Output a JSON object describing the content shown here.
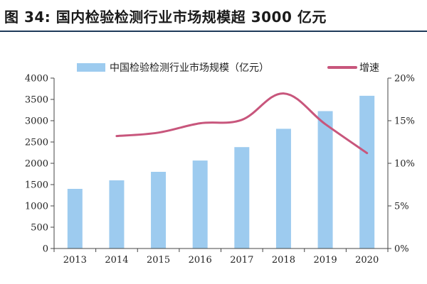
{
  "figure": {
    "title": "图 34:  国内检验检测行业市场规模超 3000 亿元"
  },
  "chart_data": {
    "type": "bar",
    "categories": [
      "2013",
      "2014",
      "2015",
      "2016",
      "2017",
      "2018",
      "2019",
      "2020"
    ],
    "series": [
      {
        "name": "中国检验检测行业市场规模（亿元）",
        "type": "bar",
        "axis": "left",
        "color": "#9dcbef",
        "values": [
          1400,
          1600,
          1800,
          2065,
          2380,
          2810,
          3225,
          3585
        ]
      },
      {
        "name": "增速",
        "type": "line",
        "axis": "right",
        "color": "#c8567c",
        "values": [
          null,
          13.2,
          13.6,
          14.7,
          15.1,
          18.2,
          14.6,
          11.2
        ]
      }
    ],
    "y_left": {
      "ylim": [
        0,
        4000
      ],
      "ticks": [
        "0",
        "500",
        "1000",
        "1500",
        "2000",
        "2500",
        "3000",
        "3500",
        "4000"
      ]
    },
    "y_right": {
      "ylim": [
        0,
        20
      ],
      "ticks": [
        "0%",
        "5%",
        "10%",
        "15%",
        "20%"
      ]
    },
    "legend": "top-center",
    "grid": false,
    "xlabel": "",
    "ylabel": ""
  }
}
